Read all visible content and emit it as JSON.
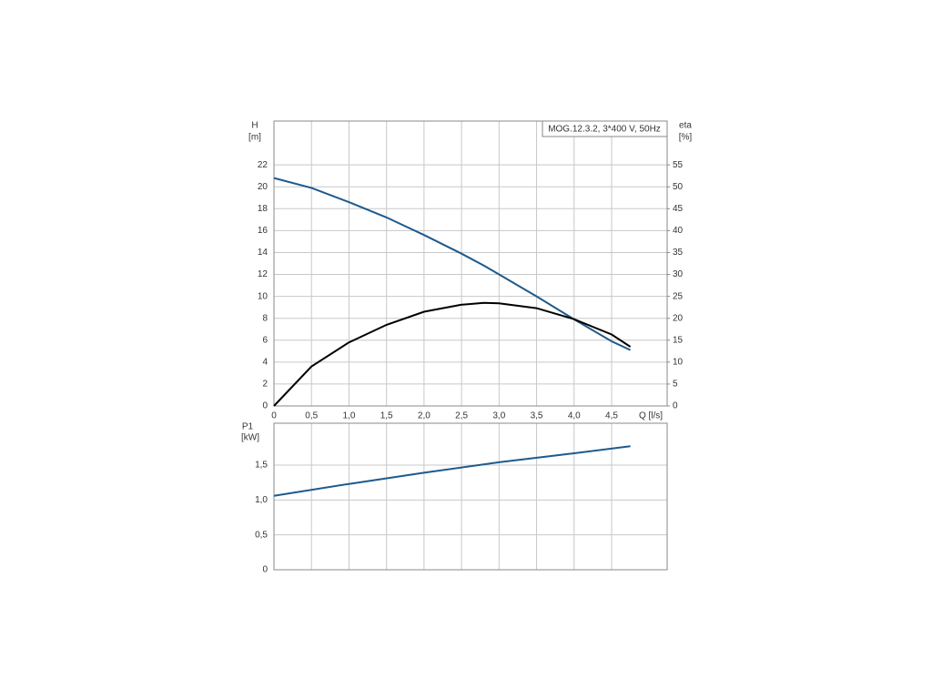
{
  "chart_data": [
    {
      "type": "line",
      "title": "MOG.12.3.2, 3*400 V, 50Hz",
      "xlabel": "Q [l/s]",
      "ylabel": "H",
      "yunit": "[m]",
      "y2label": "eta",
      "y2unit": "[%]",
      "x": [
        0,
        0.5,
        1.0,
        1.5,
        2.0,
        2.5,
        2.8,
        3.0,
        3.5,
        4.0,
        4.5,
        4.75
      ],
      "series": [
        {
          "color": "#1f5a8c",
          "axis": "y",
          "values": [
            20.8,
            19.9,
            18.6,
            17.2,
            15.6,
            13.9,
            12.8,
            12.0,
            10.0,
            7.9,
            5.9,
            5.1
          ]
        },
        {
          "color": "#000000",
          "axis": "y2",
          "values": [
            0,
            9,
            14.5,
            18.5,
            21.5,
            23.1,
            23.5,
            23.4,
            22.3,
            19.8,
            16.3,
            13.5
          ]
        }
      ],
      "xlim": [
        0,
        5.24
      ],
      "xticks": [
        0,
        {
          "value": 0.5,
          "label": "0,5"
        },
        {
          "value": 1,
          "label": "1,0"
        },
        {
          "value": 1.5,
          "label": "1,5"
        },
        {
          "value": 2,
          "label": "2,0"
        },
        {
          "value": 2.5,
          "label": "2,5"
        },
        {
          "value": 3,
          "label": "3,0"
        },
        {
          "value": 3.5,
          "label": "3,5"
        },
        {
          "value": 4,
          "label": "4,0"
        },
        {
          "value": 4.5,
          "label": "4,5"
        }
      ],
      "ylim": [
        0,
        26
      ],
      "yticks": [
        0,
        2,
        4,
        6,
        8,
        10,
        12,
        14,
        16,
        18,
        20,
        22
      ],
      "y2lim": [
        0,
        65
      ],
      "y2ticks": [
        0,
        5,
        10,
        15,
        20,
        25,
        30,
        35,
        40,
        45,
        50,
        55
      ],
      "grid": true
    },
    {
      "type": "line",
      "ylabel": "P1",
      "yunit": "[kW]",
      "x": [
        0,
        1,
        2,
        3,
        4,
        4.75
      ],
      "series": [
        {
          "color": "#1f5a8c",
          "axis": "y",
          "values": [
            1.06,
            1.23,
            1.39,
            1.54,
            1.67,
            1.77
          ]
        }
      ],
      "xlim": [
        0,
        5.24
      ],
      "ylim": [
        0,
        2.1
      ],
      "yticks": [
        0,
        {
          "value": 0.5,
          "label": "0,5"
        },
        {
          "value": 1,
          "label": "1,0"
        },
        {
          "value": 1.5,
          "label": "1,5"
        }
      ],
      "grid": true
    }
  ]
}
